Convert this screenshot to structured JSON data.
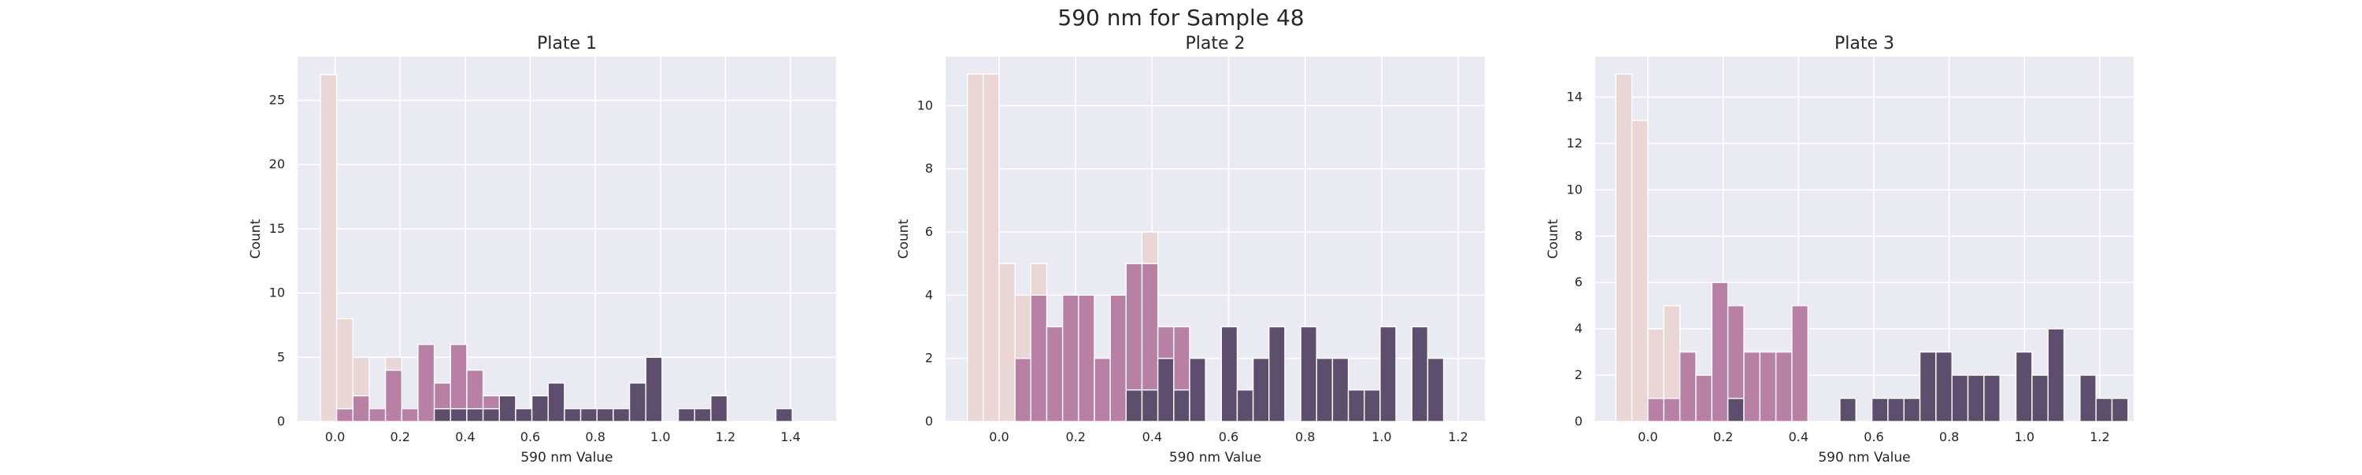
{
  "figure": {
    "suptitle": "590 nm for Sample 48"
  },
  "colors": {
    "background": "#ffffff",
    "axes_face": "#eaeaf2",
    "grid": "#ffffff",
    "text": "#262626",
    "hue_light": "#ebd6d6",
    "hue_mid": "#b980a6",
    "hue_dark": "#5d4e6e",
    "bar_edge": "#ffffff"
  },
  "chart_data": [
    {
      "type": "bar",
      "subtype": "stacked-histogram",
      "title": "Plate 1",
      "xlabel": "590 nm Value",
      "ylabel": "Count",
      "xlim": [
        -0.115,
        1.54
      ],
      "ylim": [
        0,
        28.4
      ],
      "xticks": [
        0.0,
        0.2,
        0.4,
        0.6,
        0.8,
        1.0,
        1.2,
        1.4
      ],
      "xtick_labels": [
        "0.0",
        "0.2",
        "0.4",
        "0.6",
        "0.8",
        "1.0",
        "1.2",
        "1.4"
      ],
      "yticks": [
        0,
        5,
        10,
        15,
        20,
        25
      ],
      "ytick_labels": [
        "0",
        "5",
        "10",
        "15",
        "20",
        "25"
      ],
      "grid": true,
      "legend": "none",
      "bin_start": -0.045,
      "bin_width": 0.05,
      "series": [
        {
          "color_key": "hue_dark",
          "values": [
            0,
            0,
            0,
            0,
            0,
            0,
            0,
            1,
            1,
            1,
            1,
            2,
            1,
            2,
            3,
            1,
            1,
            1,
            1,
            3,
            5,
            0,
            1,
            1,
            2,
            0,
            0,
            0,
            1
          ]
        },
        {
          "color_key": "hue_mid",
          "values": [
            0,
            1,
            2,
            1,
            4,
            1,
            6,
            2,
            5,
            3,
            1,
            0,
            0,
            0,
            0,
            0,
            0,
            0,
            0,
            0,
            0,
            0,
            0,
            0,
            0,
            0,
            0,
            0,
            0
          ]
        },
        {
          "color_key": "hue_light",
          "values": [
            27,
            7,
            3,
            0,
            1,
            0,
            0,
            0,
            0,
            0,
            0,
            0,
            0,
            0,
            0,
            0,
            0,
            0,
            0,
            0,
            0,
            0,
            0,
            0,
            0,
            0,
            0,
            0,
            0
          ]
        }
      ]
    },
    {
      "type": "bar",
      "subtype": "stacked-histogram",
      "title": "Plate 2",
      "xlabel": "590 nm Value",
      "ylabel": "Count",
      "xlim": [
        -0.14,
        1.27
      ],
      "ylim": [
        0,
        11.55
      ],
      "xticks": [
        0.0,
        0.2,
        0.4,
        0.6,
        0.8,
        1.0,
        1.2
      ],
      "xtick_labels": [
        "0.0",
        "0.2",
        "0.4",
        "0.6",
        "0.8",
        "1.0",
        "1.2"
      ],
      "yticks": [
        0,
        2,
        4,
        6,
        8,
        10
      ],
      "ytick_labels": [
        "0",
        "2",
        "4",
        "6",
        "8",
        "10"
      ],
      "grid": true,
      "legend": "none",
      "bin_start": -0.083,
      "bin_width": 0.0415,
      "series": [
        {
          "color_key": "hue_dark",
          "values": [
            0,
            0,
            0,
            0,
            0,
            0,
            0,
            0,
            0,
            0,
            1,
            1,
            2,
            1,
            2,
            0,
            3,
            1,
            2,
            3,
            0,
            3,
            2,
            2,
            1,
            1,
            3,
            0,
            3,
            2
          ]
        },
        {
          "color_key": "hue_mid",
          "values": [
            0,
            0,
            0,
            2,
            4,
            3,
            4,
            4,
            2,
            4,
            4,
            4,
            1,
            2,
            0,
            0,
            0,
            0,
            0,
            0,
            0,
            0,
            0,
            0,
            0,
            0,
            0,
            0,
            0,
            0
          ]
        },
        {
          "color_key": "hue_light",
          "values": [
            11,
            11,
            5,
            2,
            1,
            0,
            0,
            0,
            0,
            0,
            0,
            1,
            0,
            0,
            0,
            0,
            0,
            0,
            0,
            0,
            0,
            0,
            0,
            0,
            0,
            0,
            0,
            0,
            0,
            0
          ]
        }
      ]
    },
    {
      "type": "bar",
      "subtype": "stacked-histogram",
      "title": "Plate 3",
      "xlabel": "590 nm Value",
      "ylabel": "Count",
      "xlim": [
        -0.14,
        1.29
      ],
      "ylim": [
        0,
        15.75
      ],
      "xticks": [
        0.0,
        0.2,
        0.4,
        0.6,
        0.8,
        1.0,
        1.2
      ],
      "xtick_labels": [
        "0.0",
        "0.2",
        "0.4",
        "0.6",
        "0.8",
        "1.0",
        "1.2"
      ],
      "yticks": [
        0,
        2,
        4,
        6,
        8,
        10,
        12,
        14
      ],
      "ytick_labels": [
        "0",
        "2",
        "4",
        "6",
        "8",
        "10",
        "12",
        "14"
      ],
      "grid": true,
      "legend": "none",
      "bin_start": -0.085,
      "bin_width": 0.0425,
      "series": [
        {
          "color_key": "hue_dark",
          "values": [
            0,
            0,
            0,
            0,
            0,
            0,
            0,
            1,
            0,
            0,
            0,
            0,
            0,
            0,
            1,
            0,
            1,
            1,
            1,
            3,
            3,
            2,
            2,
            2,
            0,
            3,
            2,
            4,
            0,
            2,
            1,
            1
          ]
        },
        {
          "color_key": "hue_mid",
          "values": [
            0,
            0,
            1,
            1,
            3,
            2,
            6,
            4,
            3,
            3,
            3,
            5,
            0,
            0,
            0,
            0,
            0,
            0,
            0,
            0,
            0,
            0,
            0,
            0,
            0,
            0,
            0,
            0,
            0,
            0,
            0,
            0
          ]
        },
        {
          "color_key": "hue_light",
          "values": [
            15,
            13,
            3,
            4,
            0,
            0,
            0,
            0,
            0,
            0,
            0,
            0,
            0,
            0,
            0,
            0,
            0,
            0,
            0,
            0,
            0,
            0,
            0,
            0,
            0,
            0,
            0,
            0,
            0,
            0,
            0,
            0
          ]
        }
      ]
    }
  ]
}
